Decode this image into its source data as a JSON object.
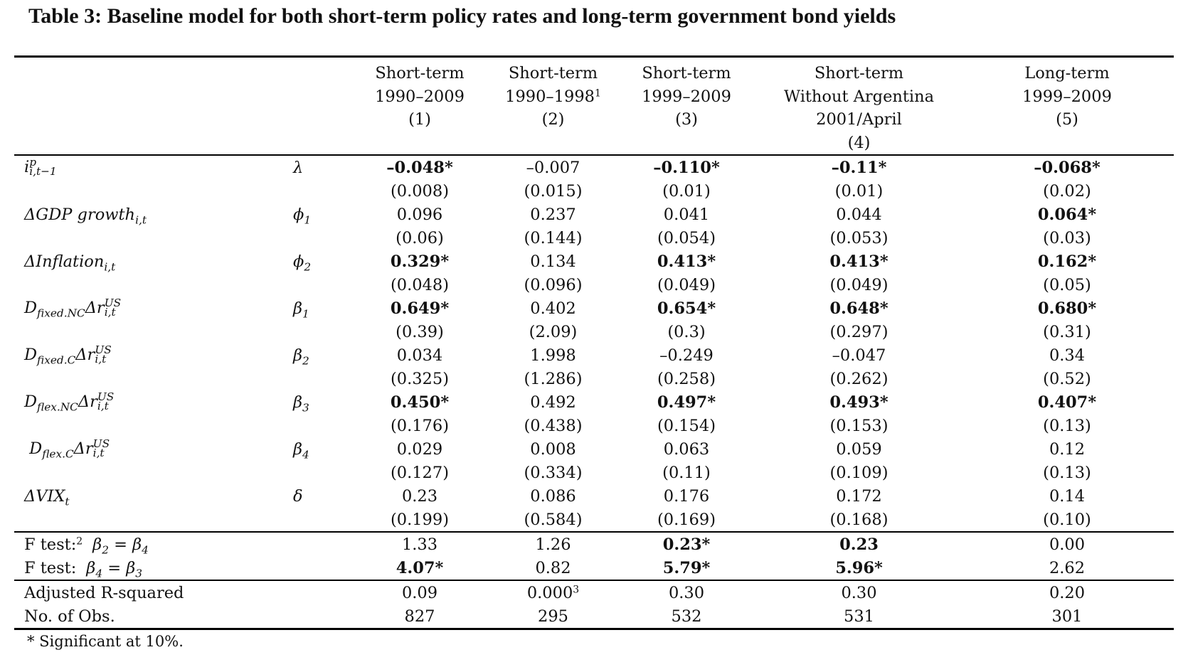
{
  "title": "Table 3: Baseline model for both short-term policy rates and long-term government bond yields",
  "columns": [
    {
      "line1": "Short-term",
      "line2": "1990–2009",
      "line3": "(1)",
      "line4": ""
    },
    {
      "line1": "Short-term",
      "line2": "1990–1998",
      "line2_sup": "1",
      "line3": "(2)",
      "line4": ""
    },
    {
      "line1": "Short-term",
      "line2": "1999–2009",
      "line3": "(3)",
      "line4": ""
    },
    {
      "line1": "Short-term",
      "line2": "Without Argentina",
      "line3": "2001/April",
      "line4": "(4)"
    },
    {
      "line1": "Long-term",
      "line2": "1999–2009",
      "line3": "(5)",
      "line4": ""
    }
  ],
  "variables": [
    {
      "label": "lag-policy-rate",
      "symbol": "λ",
      "coef": [
        "–0.048*",
        "–0.007",
        "–0.110*",
        "–0.11*",
        "–0.068*"
      ],
      "bold": [
        true,
        false,
        true,
        true,
        true
      ],
      "se": [
        "(0.008)",
        "(0.015)",
        "(0.01)",
        "(0.01)",
        "(0.02)"
      ]
    },
    {
      "label": "gdp-growth",
      "symbol": "ϕ1",
      "coef": [
        "0.096",
        "0.237",
        "0.041",
        "0.044",
        "0.064*"
      ],
      "bold": [
        false,
        false,
        false,
        false,
        true
      ],
      "se": [
        "(0.06)",
        "(0.144)",
        "(0.054)",
        "(0.053)",
        "(0.03)"
      ]
    },
    {
      "label": "inflation",
      "symbol": "ϕ2",
      "coef": [
        "0.329*",
        "0.134",
        "0.413*",
        "0.413*",
        "0.162*"
      ],
      "bold": [
        true,
        false,
        true,
        true,
        true
      ],
      "se": [
        "(0.048)",
        "(0.096)",
        "(0.049)",
        "(0.049)",
        "(0.05)"
      ]
    },
    {
      "label": "fixed-nc",
      "symbol": "β1",
      "coef": [
        "0.649*",
        "0.402",
        "0.654*",
        "0.648*",
        "0.680*"
      ],
      "bold": [
        true,
        false,
        true,
        true,
        true
      ],
      "se": [
        "(0.39)",
        "(2.09)",
        "(0.3)",
        "(0.297)",
        "(0.31)"
      ]
    },
    {
      "label": "fixed-c",
      "symbol": "β2",
      "coef": [
        "0.034",
        "1.998",
        "–0.249",
        "–0.047",
        "0.34"
      ],
      "bold": [
        false,
        false,
        false,
        false,
        false
      ],
      "se": [
        "(0.325)",
        "(1.286)",
        "(0.258)",
        "(0.262)",
        "(0.52)"
      ]
    },
    {
      "label": "flex-nc",
      "symbol": "β3",
      "coef": [
        "0.450*",
        "0.492",
        "0.497*",
        "0.493*",
        "0.407*"
      ],
      "bold": [
        true,
        false,
        true,
        true,
        true
      ],
      "se": [
        "(0.176)",
        "(0.438)",
        "(0.154)",
        "(0.153)",
        "(0.13)"
      ]
    },
    {
      "label": "flex-c",
      "symbol": "β4",
      "coef": [
        "0.029",
        "0.008",
        "0.063",
        "0.059",
        "0.12"
      ],
      "bold": [
        false,
        false,
        false,
        false,
        false
      ],
      "se": [
        "(0.127)",
        "(0.334)",
        "(0.11)",
        "(0.109)",
        "(0.13)"
      ]
    },
    {
      "label": "vix",
      "symbol": "δ",
      "coef": [
        "0.23",
        "0.086",
        "0.176",
        "0.172",
        "0.14"
      ],
      "bold": [
        false,
        false,
        false,
        false,
        false
      ],
      "se": [
        "(0.199)",
        "(0.584)",
        "(0.169)",
        "(0.168)",
        "(0.10)"
      ]
    }
  ],
  "ftests": [
    {
      "label": "F test:",
      "sup": "2",
      "eq": "β2 = β4",
      "values": [
        "1.33",
        "1.26",
        "0.23*",
        "0.23",
        "0.00"
      ],
      "bold": [
        false,
        false,
        true,
        true,
        false
      ]
    },
    {
      "label": "F test:",
      "sup": "",
      "eq": "β4 = β3",
      "values": [
        "4.07*",
        "0.82",
        "5.79*",
        "5.96*",
        "2.62"
      ],
      "bold": [
        true,
        false,
        true,
        true,
        false
      ]
    }
  ],
  "stats": [
    {
      "label": "Adjusted R-squared",
      "values": [
        "0.09",
        "0.000",
        "0.30",
        "0.30",
        "0.20"
      ],
      "sups": [
        "",
        "3",
        "",
        "",
        ""
      ]
    },
    {
      "label": "No. of Obs.",
      "values": [
        "827",
        "295",
        "532",
        "531",
        "301"
      ],
      "sups": [
        "",
        "",
        "",
        "",
        ""
      ]
    }
  ],
  "footnote": "* Significant at 10%."
}
